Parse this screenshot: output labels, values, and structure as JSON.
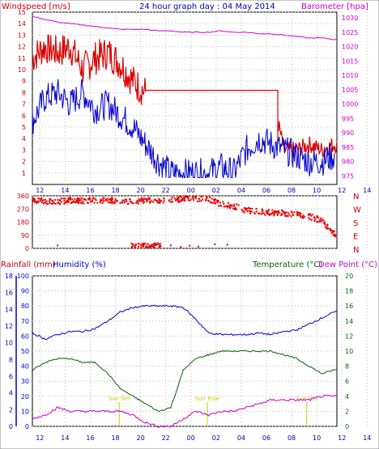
{
  "title": "24 hour graph day : 04 May 2014",
  "colors": {
    "wind": "#dd0000",
    "gust": "#dd0000",
    "windspeed_line": "#0000cc",
    "barometer": "#cc00cc",
    "direction": "#ee0000",
    "rain": "#cc0000",
    "humidity": "#0000cc",
    "temperature": "#006600",
    "dewpoint": "#cc00cc",
    "grid": "#bbbbbb",
    "sun": "#cccc00"
  },
  "chart_data": [
    {
      "type": "line",
      "name": "wind-barometer",
      "ylabel_left": "Windspeed [m/s]",
      "ylabel_right": "Barometer [hpa]",
      "x_ticks": [
        "12",
        "14",
        "16",
        "18",
        "20",
        "22",
        "00",
        "02",
        "04",
        "06",
        "08",
        "10",
        "12",
        "14",
        "16",
        "18",
        "20",
        "22",
        "00"
      ],
      "ylim_left": [
        0,
        15
      ],
      "yticks_left": [
        1,
        2,
        3,
        4,
        5,
        6,
        7,
        8,
        9,
        10,
        11,
        12,
        13,
        14,
        15
      ],
      "ylim_right": [
        972,
        1032
      ],
      "yticks_right": [
        975,
        980,
        985,
        990,
        995,
        1000,
        1005,
        1010,
        1015,
        1020,
        1025,
        1030
      ],
      "hours": [
        0,
        1,
        2,
        3,
        4,
        5,
        6,
        7,
        8,
        9,
        10,
        11,
        12,
        13,
        14,
        15,
        16,
        17,
        18,
        19,
        20,
        21,
        22,
        23,
        24
      ],
      "series": [
        {
          "key": "gust",
          "values": [
            11,
            12,
            11.5,
            12,
            10,
            11,
            11.5,
            10.5,
            9,
            8,
            8,
            8,
            8,
            8,
            8,
            8,
            8,
            8,
            8,
            8,
            3,
            3,
            3.5,
            3,
            3.5
          ]
        },
        {
          "key": "wind",
          "values": [
            5.5,
            7.5,
            8,
            7,
            8,
            6.5,
            7,
            6,
            5,
            3.5,
            2,
            1,
            1,
            1,
            1,
            1.5,
            1,
            3,
            4,
            3.5,
            3,
            2.5,
            2,
            2,
            2.5
          ]
        },
        {
          "key": "barometer",
          "values": [
            1030.5,
            1029.5,
            1028.5,
            1028,
            1027.5,
            1027,
            1026.5,
            1026,
            1026,
            1026,
            1025.5,
            1025.5,
            1025,
            1025,
            1025,
            1025.5,
            1025,
            1025,
            1024.5,
            1024.5,
            1024,
            1023.5,
            1023,
            1023,
            1022.5
          ]
        }
      ]
    },
    {
      "type": "scatter",
      "name": "wind-direction",
      "ylabel_right": [
        "N",
        "W",
        "S",
        "E",
        "N"
      ],
      "ylim": [
        0,
        360
      ],
      "yticks": [
        0,
        90,
        180,
        270,
        360
      ],
      "hours": [
        0,
        1,
        2,
        3,
        4,
        5,
        6,
        7,
        8,
        9,
        10,
        11,
        12,
        13,
        14,
        15,
        16,
        17,
        18,
        19,
        20,
        21,
        22,
        23,
        24
      ],
      "values": [
        330,
        325,
        320,
        330,
        325,
        330,
        330,
        325,
        320,
        330,
        330,
        330,
        340,
        340,
        340,
        300,
        290,
        260,
        250,
        245,
        240,
        235,
        220,
        190,
        100
      ],
      "calm_points": [
        {
          "x": 10.2,
          "y": 15
        },
        {
          "x": 11,
          "y": 20
        },
        {
          "x": 11.8,
          "y": 10
        },
        {
          "x": 12.5,
          "y": 18
        },
        {
          "x": 13.2,
          "y": 12
        },
        {
          "x": 14.5,
          "y": 28
        },
        {
          "x": 15.5,
          "y": 25
        },
        {
          "x": 2.0,
          "y": 20
        }
      ]
    },
    {
      "type": "line",
      "name": "rain-humidity-temperature",
      "ylabel_rain": "Rainfall (mm)",
      "ylabel_humidity": "Humidity (%)",
      "ylabel_temperature": "Temperature (°C)",
      "ylabel_dewpoint": "Dew Point (°C)",
      "ylim_rain": [
        0,
        18
      ],
      "yticks_rain": [
        0,
        2,
        4,
        6,
        8,
        10,
        12,
        14,
        16,
        18
      ],
      "ylim_humidity": [
        0,
        100
      ],
      "yticks_humidity": [
        0,
        10,
        20,
        30,
        40,
        50,
        60,
        70,
        80,
        90,
        100
      ],
      "ylim_temperature": [
        0,
        20
      ],
      "yticks_temperature": [
        0,
        2,
        4,
        6,
        8,
        10,
        12,
        14,
        16,
        18,
        20
      ],
      "hours": [
        0,
        1,
        2,
        3,
        4,
        5,
        6,
        7,
        8,
        9,
        10,
        11,
        12,
        13,
        14,
        15,
        16,
        17,
        18,
        19,
        20,
        21,
        22,
        23,
        24
      ],
      "annotations": [
        "Sun Set",
        "Sun Rise",
        "Sun Set"
      ],
      "series": [
        {
          "key": "humidity",
          "values": [
            62,
            58,
            61,
            63,
            63,
            65,
            70,
            76,
            79,
            80,
            80,
            80,
            79,
            71,
            62,
            61,
            61,
            61,
            62,
            61,
            63,
            64,
            68,
            72,
            76
          ]
        },
        {
          "key": "temperature",
          "values": [
            7.5,
            8.5,
            9,
            9,
            8.5,
            8.5,
            7,
            5,
            4,
            3,
            2,
            2.5,
            7.5,
            9,
            9.5,
            10,
            10,
            10,
            10,
            10,
            9.5,
            9,
            8,
            7,
            7.5
          ]
        },
        {
          "key": "dewpoint",
          "values": [
            1,
            1.5,
            2.5,
            2,
            2,
            2,
            2,
            2,
            1.5,
            0.5,
            0,
            0,
            1,
            2,
            1.5,
            2,
            2,
            2.5,
            3,
            3.5,
            3.5,
            3.5,
            3.5,
            4,
            4
          ]
        }
      ]
    }
  ]
}
